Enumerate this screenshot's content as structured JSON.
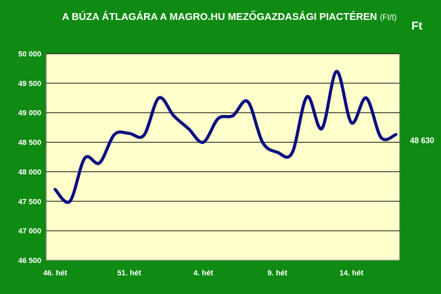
{
  "chart_data": {
    "type": "line",
    "title": "A BÚZA ÁTLAGÁRA A MAGRO.HU MEZŐGAZDASÁGI PIACTÉREN",
    "title_unit": "(Ft/t)",
    "unit_label": "Ft",
    "ylim": [
      46500,
      50000
    ],
    "y_ticks": [
      46500,
      47000,
      47500,
      48000,
      48500,
      49000,
      49500,
      50000
    ],
    "y_tick_labels": [
      "46 500",
      "47 000",
      "47 500",
      "48 000",
      "48 500",
      "49 000",
      "49 500",
      "50 000"
    ],
    "x_tick_labels": [
      "46. hét",
      "51. hét",
      "4. hét",
      "9. hét",
      "14. hét"
    ],
    "x_tick_indices": [
      0,
      5,
      10,
      15,
      20
    ],
    "last_value_label": "48 630",
    "grid": true,
    "colors": {
      "background": "#0f8a12",
      "plot_area": "#ffffcc",
      "line": "#0b0b80",
      "grid": "#000000"
    },
    "series": [
      {
        "values": [
          47700,
          47500,
          48230,
          48150,
          48630,
          48650,
          48620,
          49250,
          48950,
          48730,
          48500,
          48900,
          48950,
          49190,
          48500,
          48330,
          48320,
          49270,
          48730,
          49700,
          48830,
          49250,
          48580,
          48630
        ]
      }
    ]
  }
}
